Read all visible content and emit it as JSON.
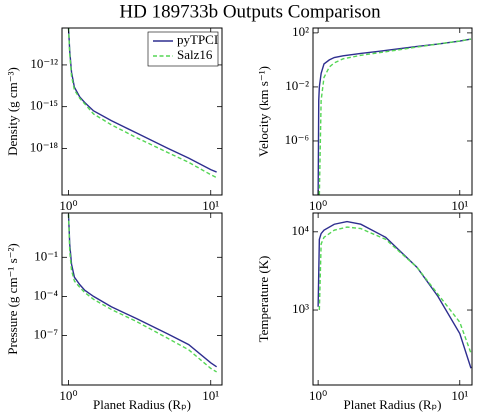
{
  "title": "HD 189733b Outputs Comparison",
  "chart_data": [
    {
      "type": "line",
      "ylabel": "Density (g cm⁻³)",
      "xscale": "log",
      "yscale": "log",
      "legend": "upper right",
      "x": [
        1.0,
        1.02,
        1.05,
        1.1,
        1.2,
        1.3,
        1.5,
        2,
        3,
        5,
        7,
        10,
        11
      ],
      "series": [
        {
          "name": "pyTPCI",
          "color": "#2e2e8f",
          "linestyle": "solid",
          "values": [
            5e-10,
            1e-11,
            3e-13,
            2.5e-14,
            5e-15,
            2e-15,
            5e-16,
            1e-16,
            1.3e-17,
            1e-18,
            2e-19,
            3e-20,
            2e-20
          ]
        },
        {
          "name": "Salz16",
          "color": "#55d655",
          "linestyle": "dashed",
          "values": [
            5e-10,
            6e-12,
            1.6e-13,
            1.6e-14,
            4e-15,
            1.6e-15,
            3e-16,
            5e-17,
            6e-18,
            5e-19,
            1e-19,
            1.3e-20,
            8e-21
          ]
        }
      ],
      "xlim": [
        0.9,
        12
      ],
      "ylim": [
        4.5e-22,
        4.5e-10
      ],
      "xticks": [
        {
          "value": 1,
          "label": "10⁰"
        },
        {
          "value": 10,
          "label": "10¹"
        }
      ],
      "yticks": [
        {
          "value": 1e-12,
          "label": "10⁻¹²"
        },
        {
          "value": 1e-15,
          "label": "10⁻¹⁵"
        },
        {
          "value": 1e-18,
          "label": "10⁻¹⁸"
        }
      ]
    },
    {
      "type": "line",
      "ylabel": "Velocity (km s⁻¹)",
      "xscale": "log",
      "yscale": "log",
      "x": [
        1.0,
        1.01,
        1.02,
        1.05,
        1.1,
        1.2,
        1.3,
        1.5,
        2,
        3,
        5,
        7,
        10,
        12
      ],
      "series": [
        {
          "name": "pyTPCI",
          "color": "#2e2e8f",
          "linestyle": "solid",
          "values": [
            1e-10,
            0.001,
            0.01,
            0.1,
            0.5,
            1,
            1.5,
            2,
            3,
            5,
            10,
            15,
            25,
            35
          ]
        },
        {
          "name": "Salz16",
          "color": "#55d655",
          "linestyle": "dashed",
          "values": [
            null,
            null,
            1e-10,
            0.001,
            0.05,
            0.3,
            0.6,
            1.2,
            2.2,
            4,
            9,
            15,
            25,
            35
          ]
        }
      ],
      "xlim": [
        0.92,
        12.2
      ],
      "ylim": [
        1e-10,
        230
      ],
      "xticks": [
        {
          "value": 1,
          "label": "10⁰"
        },
        {
          "value": 10,
          "label": "10¹"
        }
      ],
      "yticks": [
        {
          "value": 100,
          "label": "10²"
        },
        {
          "value": 0.01,
          "label": "10⁻²"
        },
        {
          "value": 1e-06,
          "label": "10⁻⁶"
        }
      ]
    },
    {
      "type": "line",
      "ylabel": "Pressure (g cm⁻¹ s⁻²)",
      "xlabel": "Planet Radius (Rₚ)",
      "xscale": "log",
      "yscale": "log",
      "x": [
        1.0,
        1.02,
        1.05,
        1.1,
        1.2,
        1.3,
        1.5,
        2,
        3,
        5,
        7,
        10,
        11
      ],
      "series": [
        {
          "name": "pyTPCI",
          "color": "#2e2e8f",
          "linestyle": "solid",
          "values": [
            200,
            1,
            0.03,
            0.003,
            0.0008,
            0.0003,
            0.0001,
            1.6e-05,
            2e-06,
            1.3e-07,
            2e-08,
            8e-10,
            4e-10
          ]
        },
        {
          "name": "Salz16",
          "color": "#55d655",
          "linestyle": "dashed",
          "values": [
            200,
            0.3,
            0.01,
            0.0015,
            0.0005,
            0.0002,
            6e-05,
            1e-05,
            1.2e-06,
            6e-08,
            8e-09,
            3e-10,
            1.6e-10
          ]
        }
      ],
      "xlim": [
        0.9,
        12
      ],
      "ylim": [
        1.6e-11,
        250
      ],
      "xticks": [
        {
          "value": 1,
          "label": "10⁰"
        },
        {
          "value": 10,
          "label": "10¹"
        }
      ],
      "yticks": [
        {
          "value": 0.1,
          "label": "10⁻¹"
        },
        {
          "value": 0.0001,
          "label": "10⁻⁴"
        },
        {
          "value": 1e-07,
          "label": "10⁻⁷"
        }
      ]
    },
    {
      "type": "line",
      "ylabel": "Temperature (K)",
      "xlabel": "Planet Radius (Rₚ)",
      "xscale": "log",
      "yscale": "log",
      "x": [
        1.0,
        1.02,
        1.05,
        1.1,
        1.3,
        1.6,
        2,
        3,
        5,
        7,
        10,
        12
      ],
      "series": [
        {
          "name": "pyTPCI",
          "color": "#2e2e8f",
          "linestyle": "solid",
          "values": [
            1100,
            8000,
            9500,
            10500,
            12500,
            13500,
            12500,
            8500,
            3500,
            1500,
            500,
            180
          ]
        },
        {
          "name": "Salz16",
          "color": "#55d655",
          "linestyle": "dashed",
          "values": [
            null,
            1000,
            7000,
            8500,
            10500,
            11500,
            11000,
            8000,
            3500,
            1600,
            700,
            280
          ]
        }
      ],
      "xlim": [
        0.92,
        12.2
      ],
      "ylim": [
        110,
        17400
      ],
      "xticks": [
        {
          "value": 1,
          "label": "10⁰"
        },
        {
          "value": 10,
          "label": "10¹"
        }
      ],
      "yticks": [
        {
          "value": 10000,
          "label": "10⁴"
        },
        {
          "value": 1000,
          "label": "10³"
        }
      ]
    }
  ]
}
